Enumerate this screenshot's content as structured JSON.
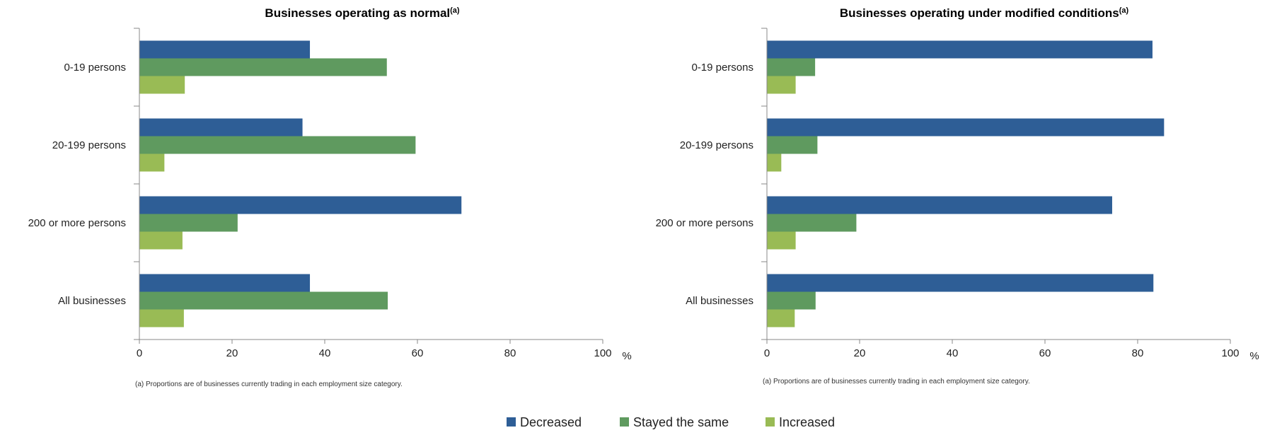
{
  "legend": [
    "Decreased",
    "Stayed the same",
    "Increased"
  ],
  "colors": [
    "#2e5e96",
    "#5f9a5f",
    "#99bb55"
  ],
  "chart_data": [
    {
      "type": "bar",
      "orientation": "horizontal",
      "title": "Businesses operating as normal",
      "title_sup": "(a)",
      "categories": [
        "0-19 persons",
        "20-199 persons",
        "200 or more persons",
        "All businesses"
      ],
      "series": [
        {
          "name": "Decreased",
          "values": [
            36.8,
            35.2,
            69.5,
            36.8
          ]
        },
        {
          "name": "Stayed the same",
          "values": [
            53.4,
            59.6,
            21.2,
            53.6
          ]
        },
        {
          "name": "Increased",
          "values": [
            9.8,
            5.4,
            9.3,
            9.6
          ]
        }
      ],
      "xlim": [
        0,
        100
      ],
      "xticks": [
        0,
        20,
        40,
        60,
        80,
        100
      ],
      "xunit": "%",
      "footnote": "(a) Proportions are of businesses currently trading in each employment size category."
    },
    {
      "type": "bar",
      "orientation": "horizontal",
      "title": "Businesses operating under modified conditions",
      "title_sup": "(a)",
      "categories": [
        "0-19 persons",
        "20-199 persons",
        "200 or more persons",
        "All businesses"
      ],
      "series": [
        {
          "name": "Decreased",
          "values": [
            83.2,
            85.7,
            74.5,
            83.4
          ]
        },
        {
          "name": "Stayed the same",
          "values": [
            10.4,
            10.9,
            19.3,
            10.5
          ]
        },
        {
          "name": "Increased",
          "values": [
            6.2,
            3.1,
            6.2,
            6.0
          ]
        }
      ],
      "xlim": [
        0,
        100
      ],
      "xticks": [
        0,
        20,
        40,
        60,
        80,
        100
      ],
      "xunit": "%",
      "footnote": "(a) Proportions are of businesses currently trading in each employment size category."
    }
  ]
}
